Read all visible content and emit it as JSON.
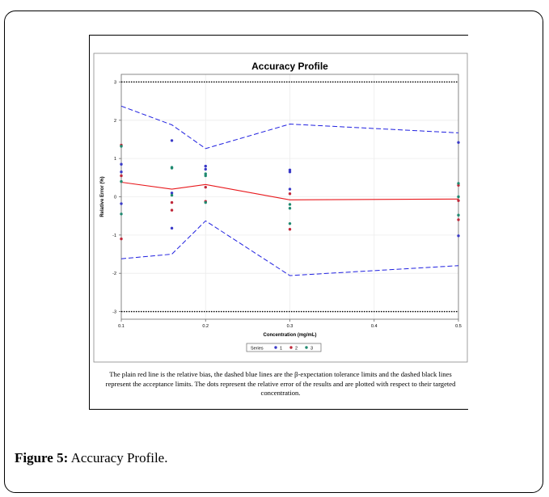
{
  "figure": {
    "label": "Figure 5:",
    "title": "Accuracy Profile.",
    "caption": "The plain red line is the relative bias, the dashed blue lines are the β-expectation tolerance limits and the dashed black lines represent the acceptance limits. The dots represent the relative error of the results and are plotted with respect to their targeted concentration."
  },
  "chart_data": {
    "type": "line",
    "title": "Accuracy Profile",
    "xlabel": "Concentration (mg/mL)",
    "ylabel": "Relative Error (%)",
    "xlim": [
      0.1,
      0.5
    ],
    "ylim": [
      -3.2,
      3.2
    ],
    "x_ticks": [
      0.1,
      0.2,
      0.3,
      0.4,
      0.5
    ],
    "x_tick_labels": [
      "0.1",
      "0.2",
      "0.3",
      "0.4",
      "0.5"
    ],
    "y_ticks": [
      -3,
      -2,
      -1,
      0,
      1,
      2,
      3
    ],
    "y_tick_labels": [
      "-3",
      "-2",
      "-1",
      "0",
      "1",
      "2",
      "3"
    ],
    "grid": true,
    "lines": [
      {
        "role": "relative bias",
        "style": "solid",
        "color": "#e8191d",
        "x": [
          0.1,
          0.16,
          0.2,
          0.3,
          0.5
        ],
        "y": [
          0.38,
          0.2,
          0.32,
          -0.08,
          -0.06
        ]
      },
      {
        "role": "upper tolerance limit",
        "style": "dashed",
        "color": "#2020e0",
        "x": [
          0.1,
          0.16,
          0.2,
          0.3,
          0.5
        ],
        "y": [
          2.37,
          1.88,
          1.26,
          1.9,
          1.67
        ]
      },
      {
        "role": "lower tolerance limit",
        "style": "dashed",
        "color": "#2020e0",
        "x": [
          0.1,
          0.16,
          0.2,
          0.3,
          0.5
        ],
        "y": [
          -1.62,
          -1.5,
          -0.63,
          -2.06,
          -1.8
        ]
      },
      {
        "role": "upper acceptance limit",
        "style": "dotted",
        "color": "#000000",
        "x": [
          0.1,
          0.5
        ],
        "y": [
          3,
          3
        ]
      },
      {
        "role": "lower acceptance limit",
        "style": "dotted",
        "color": "#000000",
        "x": [
          0.1,
          0.5
        ],
        "y": [
          -3,
          -3
        ]
      }
    ],
    "legend": {
      "title": "Series",
      "placement": "bottom-center",
      "entries": [
        "1",
        "2",
        "3"
      ]
    },
    "series": [
      {
        "name": "1",
        "color": "#3a3ac8",
        "points": [
          [
            0.1,
            0.85
          ],
          [
            0.1,
            0.65
          ],
          [
            0.1,
            -0.18
          ],
          [
            0.16,
            1.47
          ],
          [
            0.16,
            -0.82
          ],
          [
            0.16,
            0.1
          ],
          [
            0.2,
            0.8
          ],
          [
            0.2,
            0.72
          ],
          [
            0.3,
            0.7
          ],
          [
            0.3,
            0.65
          ],
          [
            0.3,
            0.2
          ],
          [
            0.5,
            1.42
          ],
          [
            0.5,
            -1.02
          ]
        ]
      },
      {
        "name": "2",
        "color": "#c0283a",
        "points": [
          [
            0.1,
            1.35
          ],
          [
            0.1,
            0.55
          ],
          [
            0.1,
            -1.1
          ],
          [
            0.16,
            -0.35
          ],
          [
            0.16,
            -0.15
          ],
          [
            0.2,
            0.25
          ],
          [
            0.2,
            -0.12
          ],
          [
            0.3,
            0.08
          ],
          [
            0.3,
            -0.85
          ],
          [
            0.5,
            -0.1
          ],
          [
            0.5,
            -0.6
          ],
          [
            0.5,
            0.3
          ]
        ]
      },
      {
        "name": "3",
        "color": "#1f8a70",
        "points": [
          [
            0.1,
            1.32
          ],
          [
            0.1,
            0.4
          ],
          [
            0.1,
            -0.45
          ],
          [
            0.16,
            0.77
          ],
          [
            0.16,
            0.75
          ],
          [
            0.16,
            0.04
          ],
          [
            0.2,
            0.6
          ],
          [
            0.2,
            0.55
          ],
          [
            0.2,
            -0.15
          ],
          [
            0.3,
            -0.2
          ],
          [
            0.3,
            -0.3
          ],
          [
            0.3,
            -0.7
          ],
          [
            0.5,
            0.35
          ],
          [
            0.5,
            0.0
          ],
          [
            0.5,
            -0.48
          ]
        ]
      }
    ]
  }
}
